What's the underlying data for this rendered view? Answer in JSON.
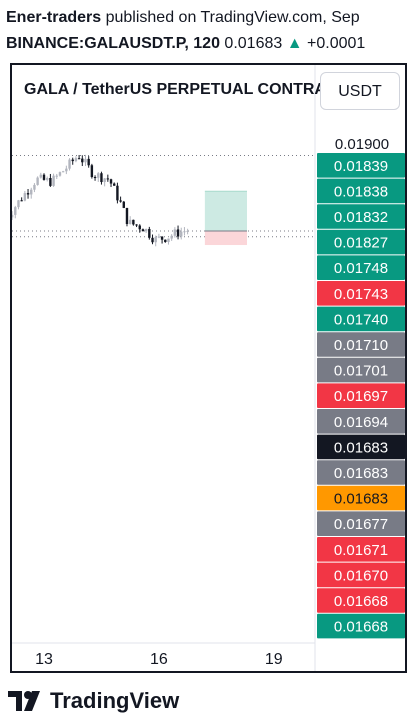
{
  "header": {
    "author": "Ener-traders",
    "published": " published on TradingView.com, Sep",
    "symbol": "BINANCE:GALAUSDT.P, 120",
    "price": "0.01683",
    "change_arrow": "▲",
    "change": "+0.0001"
  },
  "chart": {
    "title": "GALA / TetherUS PERPETUAL CONTRACT",
    "currency_button": "USDT"
  },
  "brand": {
    "name": "TradingView"
  },
  "colors": {
    "up": "#089981",
    "down": "#f23645",
    "gray": "#787b86",
    "dark": "#131722",
    "orange": "#ff9800",
    "bull_candle": "#b2b5be",
    "bear_candle": "#131722",
    "target_zone": "#cdeae3",
    "stop_zone": "#fbd6d9"
  },
  "chart_data": {
    "type": "candlestick",
    "x_ticks": [
      {
        "day": 13,
        "label": "13"
      },
      {
        "day": 16,
        "label": "16"
      },
      {
        "day": 19,
        "label": "19"
      }
    ],
    "price_axis_top_label": "0.01900",
    "price_labels": [
      {
        "value": "0.01839",
        "color": "#089981",
        "text_color": "#ffffff"
      },
      {
        "value": "0.01838",
        "color": "#089981",
        "text_color": "#ffffff"
      },
      {
        "value": "0.01832",
        "color": "#089981",
        "text_color": "#ffffff"
      },
      {
        "value": "0.01827",
        "color": "#089981",
        "text_color": "#ffffff"
      },
      {
        "value": "0.01748",
        "color": "#089981",
        "text_color": "#ffffff"
      },
      {
        "value": "0.01743",
        "color": "#f23645",
        "text_color": "#ffffff"
      },
      {
        "value": "0.01740",
        "color": "#089981",
        "text_color": "#ffffff"
      },
      {
        "value": "0.01710",
        "color": "#787b86",
        "text_color": "#ffffff"
      },
      {
        "value": "0.01701",
        "color": "#787b86",
        "text_color": "#ffffff"
      },
      {
        "value": "0.01697",
        "color": "#f23645",
        "text_color": "#ffffff"
      },
      {
        "value": "0.01694",
        "color": "#787b86",
        "text_color": "#ffffff"
      },
      {
        "value": "0.01683",
        "color": "#131722",
        "text_color": "#ffffff"
      },
      {
        "value": "0.01683",
        "color": "#787b86",
        "text_color": "#ffffff"
      },
      {
        "value": "0.01683",
        "color": "#ff9800",
        "text_color": "#131722"
      },
      {
        "value": "0.01677",
        "color": "#787b86",
        "text_color": "#ffffff"
      },
      {
        "value": "0.01671",
        "color": "#f23645",
        "text_color": "#ffffff"
      },
      {
        "value": "0.01670",
        "color": "#f23645",
        "text_color": "#ffffff"
      },
      {
        "value": "0.01668",
        "color": "#f23645",
        "text_color": "#ffffff"
      },
      {
        "value": "0.01668",
        "color": "#089981",
        "text_color": "#ffffff"
      }
    ],
    "position": {
      "type": "long",
      "entry": 0.01683,
      "target": 0.01765,
      "stop": 0.01654,
      "start_day": 17.2,
      "end_day": 18.3
    },
    "dotted_levels": [
      0.01839,
      0.01683,
      0.01671
    ],
    "candles_daily_path": [
      {
        "day": 12.0,
        "price": 0.01708
      },
      {
        "day": 12.4,
        "price": 0.0175
      },
      {
        "day": 12.8,
        "price": 0.0179
      },
      {
        "day": 13.2,
        "price": 0.01785
      },
      {
        "day": 13.6,
        "price": 0.01815
      },
      {
        "day": 13.9,
        "price": 0.0184
      },
      {
        "day": 14.3,
        "price": 0.018
      },
      {
        "day": 14.7,
        "price": 0.0179
      },
      {
        "day": 15.0,
        "price": 0.0174
      },
      {
        "day": 15.2,
        "price": 0.017
      },
      {
        "day": 15.6,
        "price": 0.0169
      },
      {
        "day": 15.9,
        "price": 0.01665
      },
      {
        "day": 16.2,
        "price": 0.0167
      },
      {
        "day": 16.5,
        "price": 0.0168
      },
      {
        "day": 16.75,
        "price": 0.01685
      }
    ]
  }
}
